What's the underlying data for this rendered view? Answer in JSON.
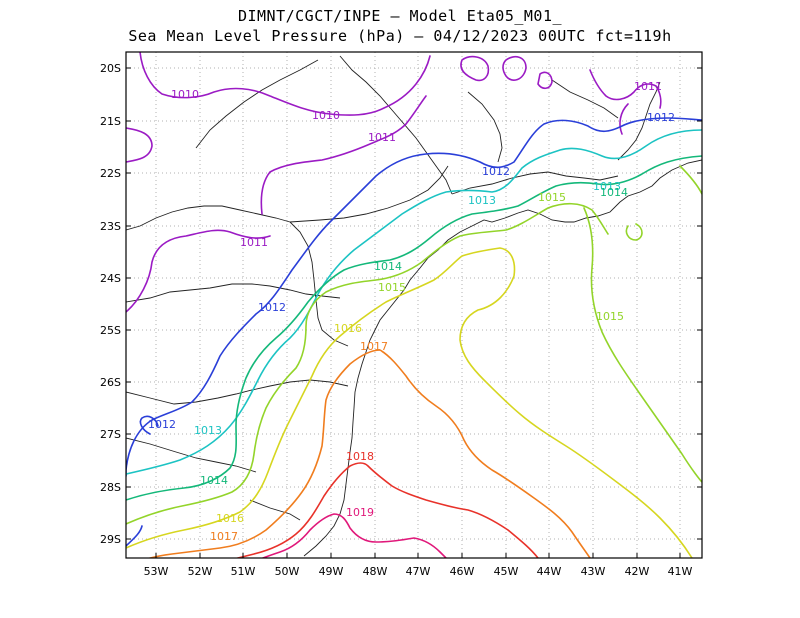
{
  "title_line1": "DIMNT/CGCT/INPE –  Model Eta05_M01_",
  "title_line2": "Sea Mean Level Pressure (hPa) – 04/12/2023 00UTC fct=119h",
  "lat_ticks": [
    "20S",
    "21S",
    "22S",
    "23S",
    "24S",
    "25S",
    "26S",
    "27S",
    "28S",
    "29S"
  ],
  "lon_ticks": [
    "53W",
    "52W",
    "51W",
    "50W",
    "49W",
    "48W",
    "47W",
    "46W",
    "45W",
    "44W",
    "43W",
    "42W",
    "41W"
  ],
  "contour_labels": [
    {
      "text": "1010",
      "color": "#9b1bc4"
    },
    {
      "text": "1010",
      "color": "#9b1bc4"
    },
    {
      "text": "1011",
      "color": "#9b1bc4"
    },
    {
      "text": "1011",
      "color": "#9b1bc4"
    },
    {
      "text": "1011",
      "color": "#9b1bc4"
    },
    {
      "text": "1012",
      "color": "#2a3fd8"
    },
    {
      "text": "1012",
      "color": "#2a3fd8"
    },
    {
      "text": "1012",
      "color": "#2a3fd8"
    },
    {
      "text": "1012",
      "color": "#2a3fd8"
    },
    {
      "text": "1013",
      "color": "#1cc3c3"
    },
    {
      "text": "1013",
      "color": "#1cc3c3"
    },
    {
      "text": "1013",
      "color": "#1cc3c3"
    },
    {
      "text": "1014",
      "color": "#14b87a"
    },
    {
      "text": "1014",
      "color": "#14b87a"
    },
    {
      "text": "1014",
      "color": "#14b87a"
    },
    {
      "text": "1015",
      "color": "#93d42a"
    },
    {
      "text": "1015",
      "color": "#93d42a"
    },
    {
      "text": "1015",
      "color": "#93d42a"
    },
    {
      "text": "1016",
      "color": "#d6d620"
    },
    {
      "text": "1016",
      "color": "#d6d620"
    },
    {
      "text": "1017",
      "color": "#f07d1e"
    },
    {
      "text": "1017",
      "color": "#f07d1e"
    },
    {
      "text": "1018",
      "color": "#e8322a"
    },
    {
      "text": "1019",
      "color": "#e0187a"
    }
  ]
}
